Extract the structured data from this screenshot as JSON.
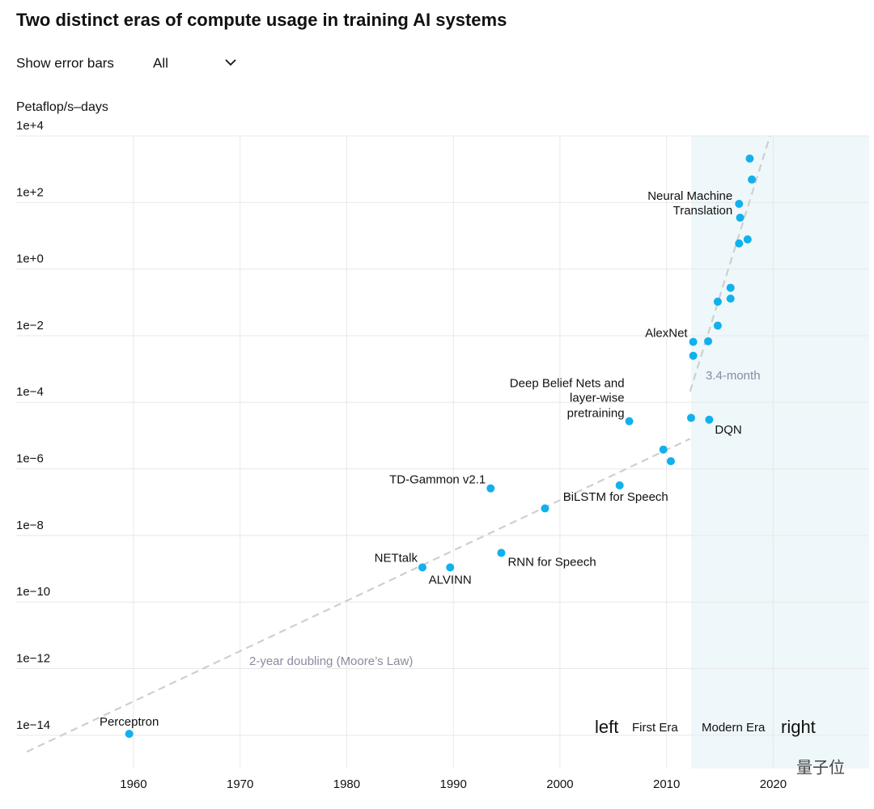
{
  "chart_data": {
    "type": "scatter",
    "title": "Two distinct eras of compute usage in training AI systems",
    "controls": {
      "label": "Show error bars",
      "value": "All"
    },
    "y_label": "Petaflop/s–days",
    "log_y": true,
    "grid": true,
    "color": "#10b1ec",
    "xlim": [
      1949,
      2029
    ],
    "xticks": [
      1960,
      1970,
      1980,
      1990,
      2000,
      2010,
      2020
    ],
    "ylim": [
      1e-15,
      10000
    ],
    "yticks": [
      {
        "value": 10000,
        "label": "1e+4"
      },
      {
        "value": 100,
        "label": "1e+2"
      },
      {
        "value": 1,
        "label": "1e+0"
      },
      {
        "value": 0.01,
        "label": "1e−2"
      },
      {
        "value": 0.0001,
        "label": "1e−4"
      },
      {
        "value": 1e-06,
        "label": "1e−6"
      },
      {
        "value": 1e-08,
        "label": "1e−8"
      },
      {
        "value": 1e-10,
        "label": "1e−10"
      },
      {
        "value": 1e-12,
        "label": "1e−12"
      },
      {
        "value": 1e-14,
        "label": "1e−14"
      }
    ],
    "modern_era_start": 2012.3,
    "era_labels": [
      "left",
      "First Era",
      "Modern Era",
      "right"
    ],
    "points": [
      {
        "label": [
          "Perceptron"
        ],
        "x": 1959.6,
        "y": 1.1e-14
      },
      {
        "label": [
          "NETtalk"
        ],
        "x": 1987.1,
        "y": 1.1e-09
      },
      {
        "label": [
          "ALVINN"
        ],
        "x": 1989.7,
        "y": 1.1e-09
      },
      {
        "label": [
          "RNN for Speech"
        ],
        "x": 1994.5,
        "y": 3e-09
      },
      {
        "label": [
          "TD-Gammon v2.1"
        ],
        "x": 1993.5,
        "y": 2.6e-07
      },
      {
        "x": 1998.6,
        "y": 6.5e-08
      },
      {
        "label": [
          "BiLSTM for Speech"
        ],
        "x": 2005.6,
        "y": 3.2e-07
      },
      {
        "x": 2009.7,
        "y": 3.8e-06
      },
      {
        "x": 2010.4,
        "y": 1.7e-06
      },
      {
        "label": [
          "Deep Belief Nets and",
          "layer-wise",
          "pretraining"
        ],
        "x": 2006.5,
        "y": 2.7e-05
      },
      {
        "x": 2012.3,
        "y": 3.4e-05
      },
      {
        "label": [
          "DQN"
        ],
        "x": 2014.0,
        "y": 3e-05
      },
      {
        "label": [
          "AlexNet"
        ],
        "x": 2012.5,
        "y": 0.0065
      },
      {
        "x": 2012.5,
        "y": 0.0025
      },
      {
        "x": 2013.9,
        "y": 0.0068
      },
      {
        "x": 2014.8,
        "y": 0.02
      },
      {
        "x": 2014.8,
        "y": 0.105
      },
      {
        "x": 2016.0,
        "y": 0.275
      },
      {
        "x": 2016.0,
        "y": 0.13
      },
      {
        "x": 2016.8,
        "y": 5.9
      },
      {
        "x": 2017.6,
        "y": 7.8
      },
      {
        "label": [
          "Neural Machine",
          "Translation"
        ],
        "x": 2016.8,
        "y": 91
      },
      {
        "x": 2016.9,
        "y": 35
      },
      {
        "x": 2018.0,
        "y": 490
      },
      {
        "x": 2017.8,
        "y": 2090
      }
    ],
    "trend_lines": [
      {
        "label": "2-year doubling (Moore’s Law)",
        "x": [
          1950.0,
          2012.2
        ],
        "y": [
          3.2e-15,
          8e-06
        ]
      },
      {
        "label": "3.4-month",
        "x": [
          2012.2,
          2019.7
        ],
        "y": [
          0.00021,
          10000
        ]
      }
    ],
    "watermark": "量子位"
  }
}
